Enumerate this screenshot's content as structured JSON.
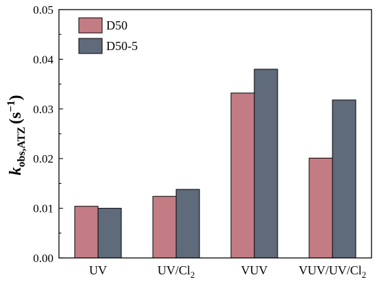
{
  "chart_data": {
    "type": "bar",
    "categories": [
      "UV",
      "UV/Cl",
      "VUV",
      "VUV/UV/Cl"
    ],
    "category_subscripts": [
      "",
      "2",
      "",
      "2"
    ],
    "series": [
      {
        "name": "D50",
        "values": [
          0.0104,
          0.0124,
          0.0332,
          0.0201
        ],
        "color": "#c47c84"
      },
      {
        "name": "D50-5",
        "values": [
          0.01,
          0.0138,
          0.038,
          0.0318
        ],
        "color": "#5f6a7a"
      }
    ],
    "ylim": [
      0.0,
      0.05
    ],
    "yticks": [
      "0.00",
      "0.01",
      "0.02",
      "0.03",
      "0.04",
      "0.05"
    ],
    "ylabel": {
      "k": "k",
      "sub": "obs,ATZ",
      "unit_open": "(s",
      "unit_sup": "−1",
      "unit_close": ")"
    },
    "legend_position": "top-left",
    "grid": false
  }
}
